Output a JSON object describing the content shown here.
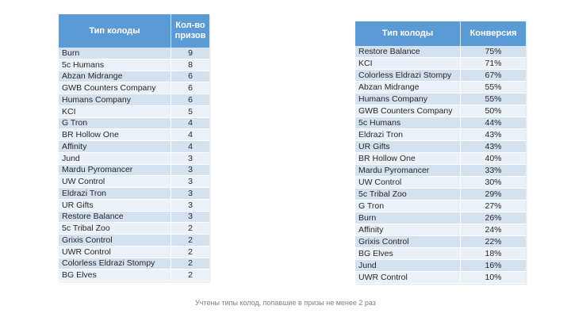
{
  "slide": {
    "background": "#FFFFFF",
    "footer_note": "Учтены типы колод, попавшие в призы не менее 2 раз"
  },
  "colors": {
    "header_bg": "#5B9BD5",
    "header_text": "#FFFFFF",
    "band_dark": "#D4E1EF",
    "band_light": "#EBF1F8",
    "row_text": "#262626",
    "footer_text": "#7F7F7F",
    "divider": "#FFFFFF"
  },
  "prizes_table": {
    "headers": [
      "Тип колоды",
      "Кол-во призов"
    ],
    "rows": [
      [
        "Burn",
        "9"
      ],
      [
        "5c Humans",
        "8"
      ],
      [
        "Abzan Midrange",
        "6"
      ],
      [
        "GWB Counters Company",
        "6"
      ],
      [
        "Humans Company",
        "6"
      ],
      [
        "KCI",
        "5"
      ],
      [
        "G Tron",
        "4"
      ],
      [
        "BR Hollow One",
        "4"
      ],
      [
        "Affinity",
        "4"
      ],
      [
        "Jund",
        "3"
      ],
      [
        "Mardu Pyromancer",
        "3"
      ],
      [
        "UW Control",
        "3"
      ],
      [
        "Eldrazi Tron",
        "3"
      ],
      [
        "UR Gifts",
        "3"
      ],
      [
        "Restore Balance",
        "3"
      ],
      [
        "5c Tribal Zoo",
        "2"
      ],
      [
        "Grixis Control",
        "2"
      ],
      [
        "UWR Control",
        "2"
      ],
      [
        "Colorless Eldrazi Stompy",
        "2"
      ],
      [
        "BG Elves",
        "2"
      ]
    ]
  },
  "conversion_table": {
    "headers": [
      "Тип колоды",
      "Конверсия"
    ],
    "rows": [
      [
        "Restore Balance",
        "75%"
      ],
      [
        "KCI",
        "71%"
      ],
      [
        "Colorless Eldrazi Stompy",
        "67%"
      ],
      [
        "Abzan Midrange",
        "55%"
      ],
      [
        "Humans Company",
        "55%"
      ],
      [
        "GWB Counters Company",
        "50%"
      ],
      [
        "5c Humans",
        "44%"
      ],
      [
        "Eldrazi Tron",
        "43%"
      ],
      [
        "UR Gifts",
        "43%"
      ],
      [
        "BR Hollow One",
        "40%"
      ],
      [
        "Mardu Pyromancer",
        "33%"
      ],
      [
        "UW Control",
        "30%"
      ],
      [
        "5c Tribal Zoo",
        "29%"
      ],
      [
        "G Tron",
        "27%"
      ],
      [
        "Burn",
        "26%"
      ],
      [
        "Affinity",
        "24%"
      ],
      [
        "Grixis Control",
        "22%"
      ],
      [
        "BG Elves",
        "18%"
      ],
      [
        "Jund",
        "16%"
      ],
      [
        "UWR Control",
        "10%"
      ]
    ]
  }
}
